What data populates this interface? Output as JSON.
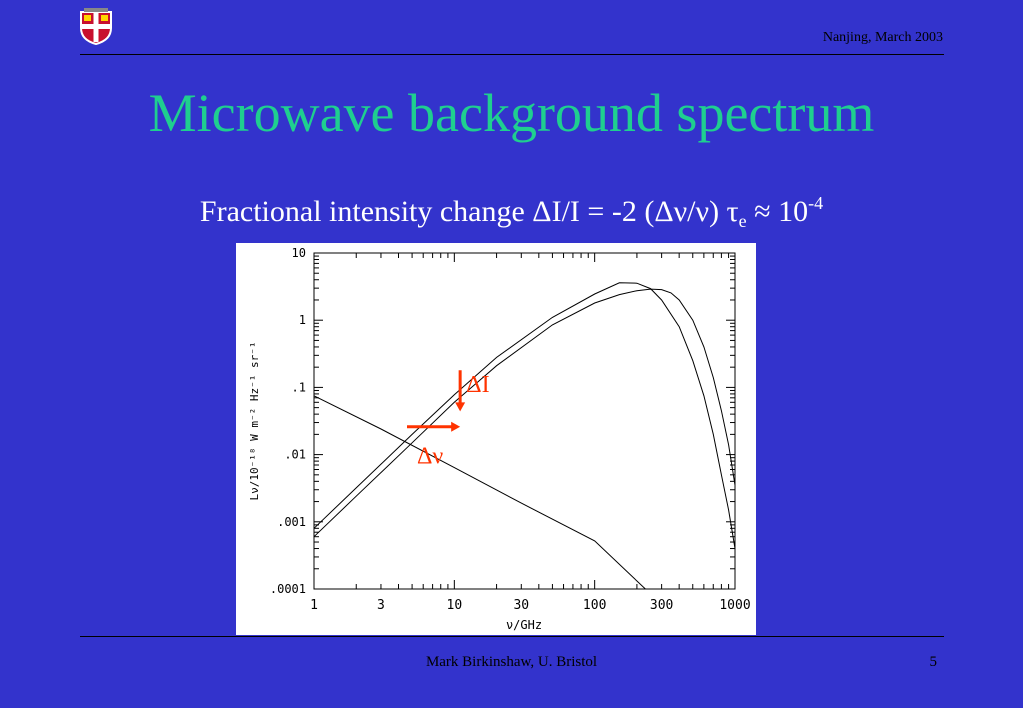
{
  "header": {
    "date": "Nanjing, March 2003"
  },
  "slide": {
    "title": "Microwave background spectrum",
    "subtitle": {
      "text_main": "Fractional intensity change ΔI/I = -2 (Δν/ν) τ",
      "sub": "e",
      "text_after": " ≈ 10",
      "sup": "-4"
    }
  },
  "footer": {
    "author": "Mark Birkinshaw, U. Bristol",
    "page": "5"
  },
  "colors": {
    "background": "#3333cc",
    "title": "#1fcf8f",
    "annotation": "#ff3300"
  },
  "chart_data": {
    "type": "line",
    "x_scale": "log",
    "y_scale": "log",
    "xlim": [
      1,
      1000
    ],
    "ylim": [
      0.0001,
      10
    ],
    "xlabel": "ν/GHz",
    "ylabel": "Lν/10⁻¹⁸ W m⁻² Hz⁻¹ sr⁻¹",
    "x_ticks": [
      {
        "value": 1,
        "label": "1"
      },
      {
        "value": 3,
        "label": "3"
      },
      {
        "value": 10,
        "label": "10"
      },
      {
        "value": 30,
        "label": "30"
      },
      {
        "value": 100,
        "label": "100"
      },
      {
        "value": 300,
        "label": "300"
      },
      {
        "value": 1000,
        "label": "1000"
      }
    ],
    "y_ticks": [
      {
        "value": 10,
        "label": "10"
      },
      {
        "value": 1,
        "label": "1"
      },
      {
        "value": 0.1,
        "label": ".1"
      },
      {
        "value": 0.01,
        "label": ".01"
      },
      {
        "value": 0.001,
        "label": ".001"
      },
      {
        "value": 0.0001,
        "label": ".0001"
      }
    ],
    "series": [
      {
        "points": [
          [
            1,
            0.0008
          ],
          [
            2,
            0.0032
          ],
          [
            5,
            0.02
          ],
          [
            10,
            0.078
          ],
          [
            20,
            0.28
          ],
          [
            50,
            1.1
          ],
          [
            100,
            2.45
          ],
          [
            150,
            3.6
          ],
          [
            200,
            3.55
          ],
          [
            250,
            2.95
          ],
          [
            300,
            2.0
          ],
          [
            400,
            0.8
          ],
          [
            500,
            0.25
          ],
          [
            600,
            0.075
          ],
          [
            700,
            0.02
          ],
          [
            800,
            0.005
          ],
          [
            900,
            0.0015
          ],
          [
            1000,
            0.0004
          ]
        ]
      },
      {
        "points": [
          [
            1,
            0.0006
          ],
          [
            2,
            0.0024
          ],
          [
            5,
            0.015
          ],
          [
            10,
            0.06
          ],
          [
            20,
            0.21
          ],
          [
            50,
            0.85
          ],
          [
            100,
            1.8
          ],
          [
            150,
            2.4
          ],
          [
            200,
            2.75
          ],
          [
            250,
            2.9
          ],
          [
            300,
            2.85
          ],
          [
            350,
            2.55
          ],
          [
            400,
            2.0
          ],
          [
            500,
            1.0
          ],
          [
            600,
            0.4
          ],
          [
            700,
            0.14
          ],
          [
            800,
            0.045
          ],
          [
            900,
            0.014
          ],
          [
            1000,
            0.0035
          ]
        ]
      },
      {
        "points": [
          [
            1,
            0.075
          ],
          [
            3,
            0.024
          ],
          [
            10,
            0.0064
          ],
          [
            30,
            0.0019
          ],
          [
            100,
            0.00052
          ],
          [
            230,
            0.0001
          ]
        ]
      }
    ],
    "annotations": [
      {
        "label": "ΔI",
        "type": "vertical-arrow",
        "x": 11,
        "y_from": 0.18,
        "y_to": 0.044
      },
      {
        "label": "Δν",
        "type": "horizontal-arrow",
        "x_from": 4.6,
        "x_to": 11,
        "y": 0.026
      }
    ]
  }
}
